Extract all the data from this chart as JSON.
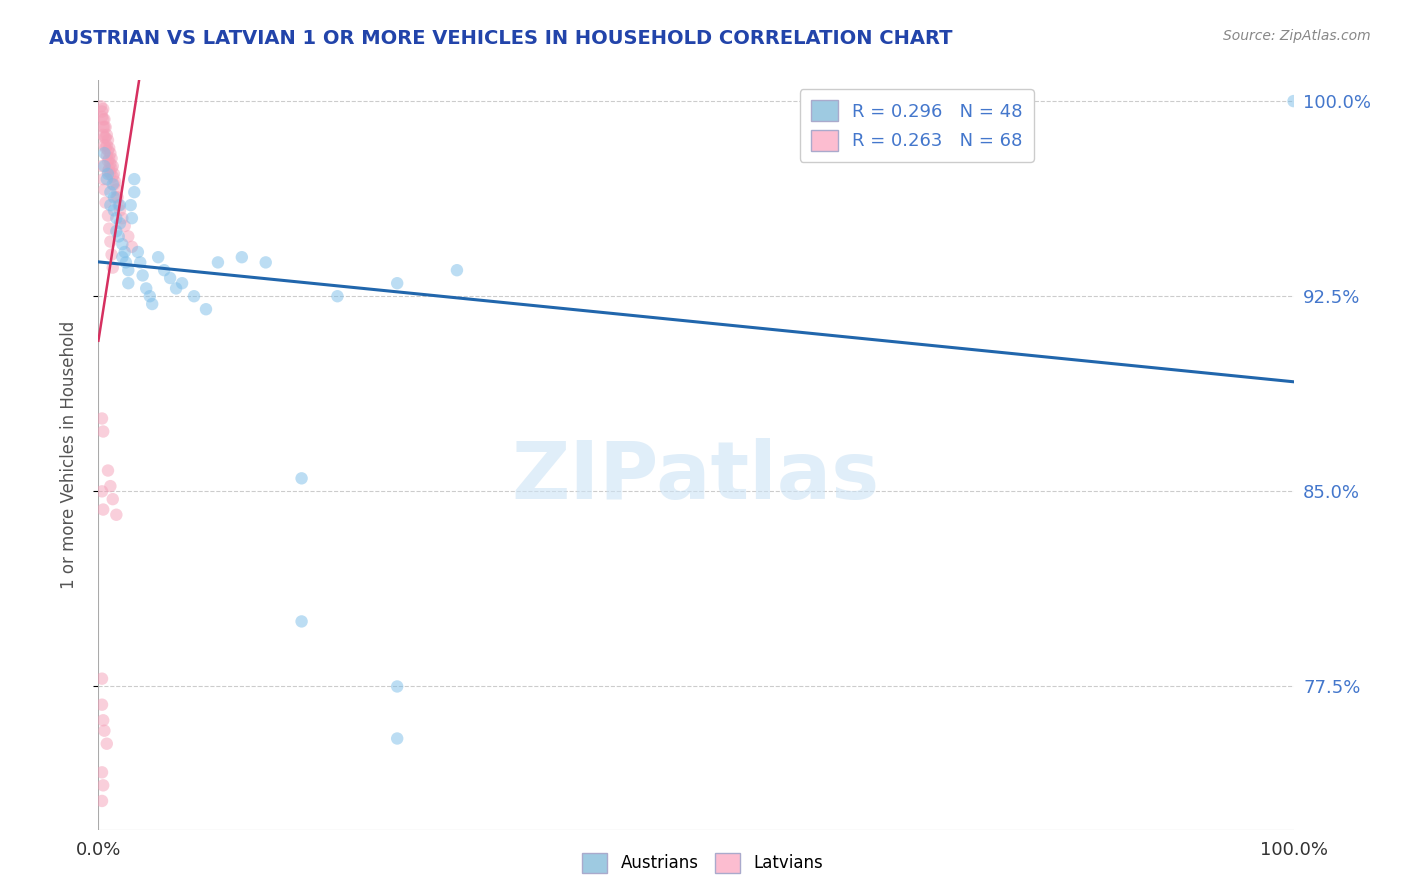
{
  "title": "AUSTRIAN VS LATVIAN 1 OR MORE VEHICLES IN HOUSEHOLD CORRELATION CHART",
  "source": "Source: ZipAtlas.com",
  "ylabel": "1 or more Vehicles in Household",
  "xlim": [
    0.0,
    1.0
  ],
  "ylim": [
    0.72,
    1.008
  ],
  "yticks": [
    0.775,
    0.85,
    0.925,
    1.0
  ],
  "ytick_labels": [
    "77.5%",
    "85.0%",
    "92.5%",
    "100.0%"
  ],
  "xtick_labels": [
    "0.0%",
    "100.0%"
  ],
  "legend_line1": "R = 0.296   N = 48",
  "legend_line2": "R = 0.263   N = 68",
  "bottom_legend": [
    "Austrians",
    "Latvians"
  ],
  "watermark": "ZIPatlas",
  "austrian_color": "#7bbde8",
  "latvian_color": "#f4a0b8",
  "austrian_trend_color": "#2166ac",
  "latvian_trend_color": "#d63060",
  "legend_austrian_color": "#9ecae1",
  "legend_latvian_color": "#fcbdd0",
  "dot_size": 80,
  "dot_alpha": 0.5,
  "background_color": "#ffffff",
  "grid_color": "#cccccc",
  "right_ytick_color": "#4477cc",
  "title_color": "#2244aa",
  "source_color": "#888888",
  "austrians_x": [
    0.005,
    0.005,
    0.007,
    0.008,
    0.01,
    0.01,
    0.012,
    0.013,
    0.013,
    0.015,
    0.015,
    0.017,
    0.018,
    0.018,
    0.02,
    0.02,
    0.022,
    0.023,
    0.025,
    0.025,
    0.027,
    0.028,
    0.03,
    0.03,
    0.033,
    0.035,
    0.037,
    0.04,
    0.043,
    0.045,
    0.05,
    0.055,
    0.06,
    0.065,
    0.07,
    0.08,
    0.09,
    0.1,
    0.12,
    0.14,
    0.17,
    0.2,
    0.25,
    0.3,
    0.17,
    0.25,
    0.25,
    1.0
  ],
  "austrians_y": [
    0.98,
    0.975,
    0.97,
    0.972,
    0.965,
    0.96,
    0.968,
    0.963,
    0.958,
    0.955,
    0.95,
    0.948,
    0.96,
    0.953,
    0.945,
    0.94,
    0.942,
    0.938,
    0.935,
    0.93,
    0.96,
    0.955,
    0.97,
    0.965,
    0.942,
    0.938,
    0.933,
    0.928,
    0.925,
    0.922,
    0.94,
    0.935,
    0.932,
    0.928,
    0.93,
    0.925,
    0.92,
    0.938,
    0.94,
    0.938,
    0.855,
    0.925,
    0.93,
    0.935,
    0.8,
    0.775,
    0.755,
    1.0
  ],
  "latvians_x": [
    0.002,
    0.003,
    0.003,
    0.004,
    0.004,
    0.004,
    0.004,
    0.005,
    0.005,
    0.005,
    0.005,
    0.006,
    0.006,
    0.006,
    0.007,
    0.007,
    0.007,
    0.008,
    0.008,
    0.008,
    0.008,
    0.009,
    0.009,
    0.009,
    0.01,
    0.01,
    0.01,
    0.011,
    0.011,
    0.012,
    0.012,
    0.013,
    0.013,
    0.014,
    0.015,
    0.015,
    0.016,
    0.017,
    0.018,
    0.02,
    0.022,
    0.025,
    0.028,
    0.003,
    0.004,
    0.005,
    0.006,
    0.008,
    0.009,
    0.01,
    0.011,
    0.012,
    0.003,
    0.004,
    0.003,
    0.004,
    0.008,
    0.01,
    0.012,
    0.015,
    0.003,
    0.003,
    0.004,
    0.005,
    0.007,
    0.003,
    0.004,
    0.003
  ],
  "latvians_y": [
    0.998,
    0.996,
    0.994,
    0.997,
    0.993,
    0.99,
    0.987,
    0.993,
    0.99,
    0.986,
    0.983,
    0.99,
    0.986,
    0.982,
    0.987,
    0.983,
    0.979,
    0.985,
    0.981,
    0.977,
    0.973,
    0.982,
    0.978,
    0.974,
    0.98,
    0.976,
    0.972,
    0.978,
    0.974,
    0.975,
    0.971,
    0.972,
    0.968,
    0.969,
    0.966,
    0.963,
    0.963,
    0.96,
    0.958,
    0.955,
    0.952,
    0.948,
    0.944,
    0.975,
    0.97,
    0.966,
    0.961,
    0.956,
    0.951,
    0.946,
    0.941,
    0.936,
    0.878,
    0.873,
    0.85,
    0.843,
    0.858,
    0.852,
    0.847,
    0.841,
    0.778,
    0.768,
    0.762,
    0.758,
    0.753,
    0.742,
    0.737,
    0.731
  ]
}
